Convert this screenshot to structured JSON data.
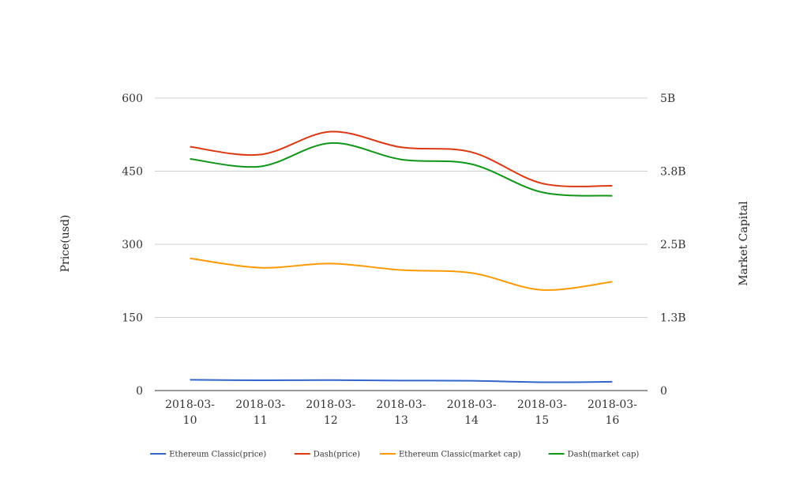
{
  "chart_data": {
    "type": "line",
    "title": "",
    "categories": [
      "2018-03-10",
      "2018-03-11",
      "2018-03-12",
      "2018-03-13",
      "2018-03-14",
      "2018-03-15",
      "2018-03-16"
    ],
    "category_lines": [
      [
        "2018-03-",
        "10"
      ],
      [
        "2018-03-",
        "11"
      ],
      [
        "2018-03-",
        "12"
      ],
      [
        "2018-03-",
        "13"
      ],
      [
        "2018-03-",
        "14"
      ],
      [
        "2018-03-",
        "15"
      ],
      [
        "2018-03-",
        "16"
      ]
    ],
    "ylabel": "Price(usd)",
    "y2label": "Market Capital",
    "ylim": [
      0,
      600
    ],
    "y2lim": [
      0,
      5000000000
    ],
    "yticks": [
      "0",
      "150",
      "300",
      "450",
      "600"
    ],
    "y2ticks": [
      "0",
      "1.3B",
      "2.5B",
      "3.8B",
      "5B"
    ],
    "grid": true,
    "legend_position": "bottom",
    "smooth": true,
    "series": [
      {
        "name": "Ethereum Classic(price)",
        "axis": "left",
        "color": "#3366cc",
        "values": [
          22,
          21,
          21.5,
          20.5,
          20,
          17,
          18
        ]
      },
      {
        "name": "Dash(price)",
        "axis": "left",
        "color": "#dc3912",
        "values": [
          500,
          484,
          531,
          499,
          489,
          425,
          420
        ]
      },
      {
        "name": "Ethereum Classic(market cap)",
        "axis": "right",
        "color": "#ff9900",
        "values": [
          2260000000,
          2100000000,
          2170000000,
          2060000000,
          2010000000,
          1720000000,
          1860000000
        ]
      },
      {
        "name": "Dash(market cap)",
        "axis": "right",
        "color": "#109618",
        "values": [
          3960000000,
          3830000000,
          4230000000,
          3950000000,
          3870000000,
          3390000000,
          3330000000
        ]
      }
    ]
  }
}
